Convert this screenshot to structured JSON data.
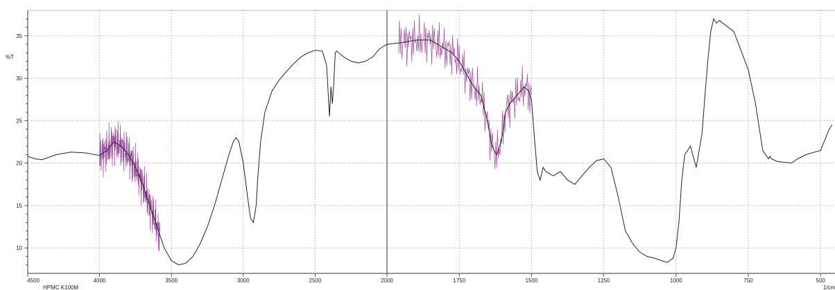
{
  "chart_data": {
    "type": "line",
    "title": "",
    "ylabel": "%T",
    "xlabel": "1/cm",
    "sample_label": "HPMC K100M",
    "xlim": [
      4500,
      450
    ],
    "ylim": [
      7,
      38
    ],
    "x_ticks": [
      4500,
      4000,
      3500,
      3000,
      2500,
      2000,
      1750,
      1500,
      1250,
      1000,
      750,
      500
    ],
    "x_tick_labels": [
      "4500",
      "4000",
      "3500",
      "3000",
      "2500",
      "2000",
      "1750",
      "1500",
      "1250",
      "1000",
      "750",
      "500"
    ],
    "y_ticks": [
      10,
      15,
      20,
      25,
      30,
      35
    ],
    "y_tick_labels": [
      "10",
      "15",
      "20",
      "25",
      "30",
      "35"
    ],
    "grid": true,
    "series": [
      {
        "color": "#222222",
        "noise_color": "#8a2b8a",
        "x": [
          4500,
          4450,
          4400,
          4300,
          4200,
          4100,
          4000,
          3950,
          3900,
          3850,
          3800,
          3750,
          3700,
          3650,
          3600,
          3550,
          3500,
          3450,
          3400,
          3350,
          3300,
          3250,
          3200,
          3150,
          3100,
          3070,
          3050,
          3030,
          3000,
          2970,
          2950,
          2930,
          2910,
          2900,
          2880,
          2850,
          2800,
          2750,
          2700,
          2650,
          2600,
          2550,
          2500,
          2450,
          2420,
          2400,
          2390,
          2380,
          2370,
          2360,
          2350,
          2300,
          2250,
          2200,
          2150,
          2100,
          2050,
          2000,
          1950,
          1900,
          1850,
          1800,
          1775,
          1750,
          1725,
          1700,
          1675,
          1660,
          1650,
          1640,
          1630,
          1620,
          1610,
          1600,
          1590,
          1575,
          1550,
          1525,
          1510,
          1500,
          1490,
          1480,
          1470,
          1460,
          1450,
          1425,
          1400,
          1375,
          1350,
          1325,
          1300,
          1275,
          1250,
          1225,
          1200,
          1175,
          1150,
          1125,
          1100,
          1075,
          1050,
          1030,
          1010,
          1000,
          990,
          980,
          970,
          950,
          930,
          910,
          900,
          890,
          880,
          870,
          860,
          850,
          800,
          750,
          725,
          700,
          680,
          675,
          670,
          650,
          600,
          580,
          550,
          500,
          470,
          460
        ],
        "y": [
          20.8,
          20.5,
          20.4,
          21.0,
          21.3,
          21.2,
          20.9,
          21.5,
          22.5,
          22.0,
          21.0,
          19.5,
          17.5,
          15.0,
          12.5,
          10.0,
          8.5,
          8.0,
          8.2,
          9.0,
          10.5,
          12.5,
          15.0,
          18.0,
          21.0,
          22.5,
          23.0,
          22.5,
          20.0,
          16.0,
          13.5,
          13.0,
          15.0,
          18.0,
          22.5,
          26.0,
          28.5,
          29.8,
          30.8,
          31.7,
          32.5,
          33.0,
          33.3,
          33.2,
          31.5,
          25.5,
          29.0,
          27.0,
          29.5,
          33.0,
          33.2,
          32.5,
          32.0,
          31.8,
          32.0,
          32.5,
          33.5,
          34.0,
          34.2,
          34.5,
          34.5,
          33.5,
          33.0,
          32.0,
          30.5,
          29.0,
          28.0,
          26.0,
          24.5,
          22.5,
          21.5,
          21.0,
          22.0,
          23.5,
          26.0,
          27.0,
          28.0,
          29.0,
          28.5,
          27.5,
          23.0,
          19.0,
          18.0,
          19.5,
          19.0,
          18.5,
          19.0,
          18.0,
          17.5,
          18.5,
          19.5,
          20.3,
          20.5,
          19.5,
          16.0,
          12.0,
          10.5,
          9.5,
          9.0,
          8.8,
          8.5,
          8.3,
          8.8,
          10.0,
          13.0,
          18.0,
          21.0,
          22.0,
          19.5,
          23.5,
          28.0,
          32.0,
          35.5,
          37.0,
          36.5,
          36.8,
          35.5,
          31.0,
          27.0,
          21.5,
          20.5,
          20.8,
          20.5,
          20.2,
          20.0,
          20.5,
          21.0,
          21.5,
          24.0,
          24.5
        ],
        "noisy_ranges": [
          [
            4000,
            3580
          ],
          [
            1960,
            1500
          ]
        ]
      }
    ]
  }
}
